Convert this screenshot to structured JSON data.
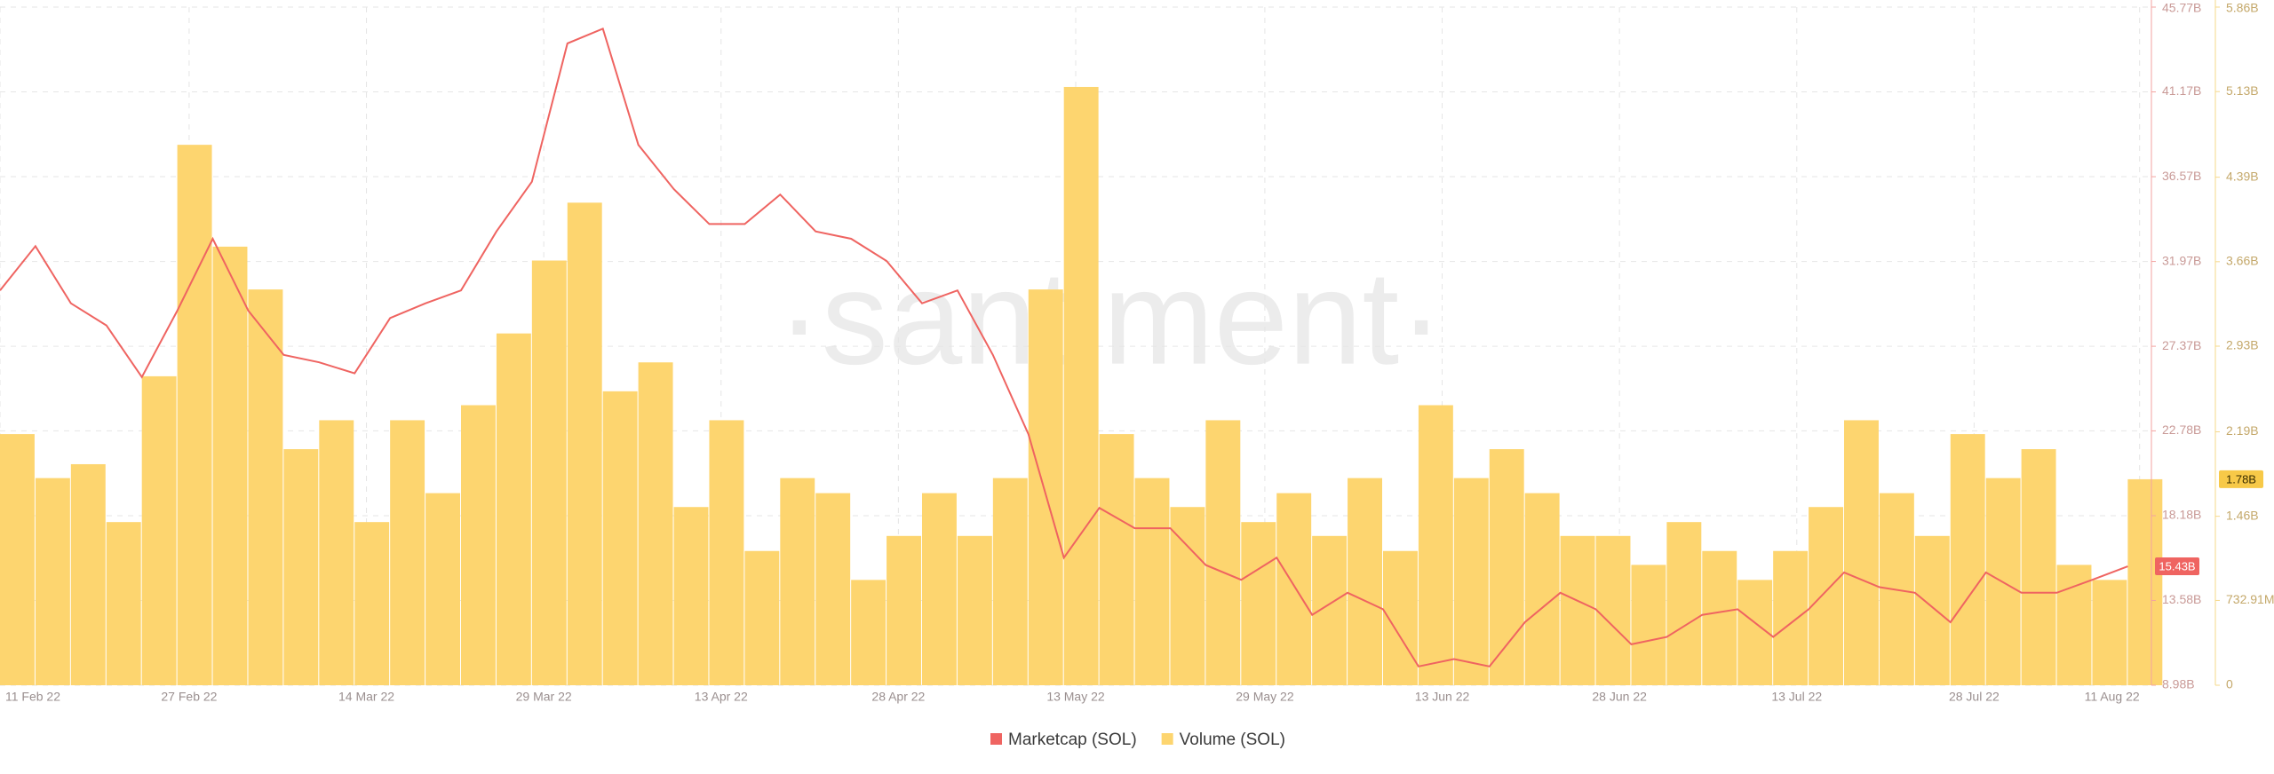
{
  "chart_data": {
    "type": "combo",
    "watermark": "·santiment·",
    "x": [
      "2022-02-11",
      "2022-02-14",
      "2022-02-17",
      "2022-02-20",
      "2022-02-23",
      "2022-02-26",
      "2022-03-01",
      "2022-03-04",
      "2022-03-07",
      "2022-03-10",
      "2022-03-13",
      "2022-03-16",
      "2022-03-19",
      "2022-03-22",
      "2022-03-25",
      "2022-03-28",
      "2022-03-31",
      "2022-04-03",
      "2022-04-06",
      "2022-04-09",
      "2022-04-12",
      "2022-04-15",
      "2022-04-18",
      "2022-04-21",
      "2022-04-24",
      "2022-04-27",
      "2022-04-30",
      "2022-05-03",
      "2022-05-06",
      "2022-05-09",
      "2022-05-12",
      "2022-05-15",
      "2022-05-18",
      "2022-05-21",
      "2022-05-24",
      "2022-05-27",
      "2022-05-30",
      "2022-06-02",
      "2022-06-05",
      "2022-06-08",
      "2022-06-11",
      "2022-06-14",
      "2022-06-17",
      "2022-06-20",
      "2022-06-23",
      "2022-06-26",
      "2022-06-29",
      "2022-07-02",
      "2022-07-05",
      "2022-07-08",
      "2022-07-11",
      "2022-07-14",
      "2022-07-17",
      "2022-07-20",
      "2022-07-23",
      "2022-07-26",
      "2022-07-29",
      "2022-08-01",
      "2022-08-04",
      "2022-08-07",
      "2022-08-10"
    ],
    "xlim": [
      "2022-02-11",
      "2022-08-12"
    ],
    "xticks": [
      {
        "value": "2022-02-11",
        "label": "11 Feb 22"
      },
      {
        "value": "2022-02-27",
        "label": "27 Feb 22"
      },
      {
        "value": "2022-03-14",
        "label": "14 Mar 22"
      },
      {
        "value": "2022-03-29",
        "label": "29 Mar 22"
      },
      {
        "value": "2022-04-13",
        "label": "13 Apr 22"
      },
      {
        "value": "2022-04-28",
        "label": "28 Apr 22"
      },
      {
        "value": "2022-05-13",
        "label": "13 May 22"
      },
      {
        "value": "2022-05-29",
        "label": "29 May 22"
      },
      {
        "value": "2022-06-13",
        "label": "13 Jun 22"
      },
      {
        "value": "2022-06-28",
        "label": "28 Jun 22"
      },
      {
        "value": "2022-07-13",
        "label": "13 Jul 22"
      },
      {
        "value": "2022-07-28",
        "label": "28 Jul 22"
      },
      {
        "value": "2022-08-11",
        "label": "11 Aug 22"
      }
    ],
    "ylim": [
      8.98,
      45.77
    ],
    "yticks": [
      {
        "value": 8.98,
        "label": "8.98B"
      },
      {
        "value": 13.58,
        "label": "13.58B"
      },
      {
        "value": 18.18,
        "label": "18.18B"
      },
      {
        "value": 22.78,
        "label": "22.78B"
      },
      {
        "value": 27.37,
        "label": "27.37B"
      },
      {
        "value": 31.97,
        "label": "31.97B"
      },
      {
        "value": 36.57,
        "label": "36.57B"
      },
      {
        "value": 41.17,
        "label": "41.17B"
      },
      {
        "value": 45.77,
        "label": "45.77B"
      }
    ],
    "y2lim": [
      0,
      5.86
    ],
    "y2ticks": [
      0,
      {
        "value": 0.73291,
        "label": "732.91M"
      },
      {
        "value": 1.46,
        "label": "1.46B"
      },
      {
        "value": 2.19,
        "label": "2.19B"
      },
      {
        "value": 2.93,
        "label": "2.93B"
      },
      {
        "value": 3.66,
        "label": "3.66B"
      },
      {
        "value": 4.39,
        "label": "4.39B"
      },
      {
        "value": 5.13,
        "label": "5.13B"
      },
      {
        "value": 5.86,
        "label": "5.86B"
      }
    ],
    "grid": true,
    "legend": "bottom",
    "series": [
      {
        "name": "Marketcap (SOL)",
        "type": "line",
        "color": "#ef6461",
        "last_label": "15.43B",
        "values": [
          30.4,
          32.8,
          29.7,
          28.5,
          25.7,
          29.3,
          33.2,
          29.3,
          26.9,
          26.5,
          25.9,
          28.9,
          29.7,
          30.4,
          33.6,
          36.3,
          43.8,
          44.6,
          38.3,
          35.9,
          34.0,
          34.0,
          35.6,
          33.6,
          33.2,
          32.0,
          29.7,
          30.4,
          26.9,
          22.6,
          15.9,
          18.6,
          17.5,
          17.5,
          15.5,
          14.7,
          15.9,
          12.8,
          14.0,
          13.1,
          10.0,
          10.4,
          10.0,
          12.4,
          14.0,
          13.1,
          11.2,
          11.6,
          12.8,
          13.1,
          11.6,
          13.1,
          15.1,
          14.3,
          14.0,
          12.4,
          15.1,
          14.0,
          14.0,
          14.7,
          15.43
        ]
      },
      {
        "name": "Volume (SOL)",
        "type": "bar",
        "axis": "y2",
        "color": "#fdd56f",
        "last_label": "1.78B",
        "values": [
          2.17,
          1.79,
          1.91,
          1.41,
          2.67,
          4.67,
          3.79,
          3.42,
          2.04,
          2.29,
          1.41,
          2.29,
          1.66,
          2.42,
          3.04,
          3.67,
          4.17,
          2.54,
          2.79,
          1.54,
          2.29,
          1.16,
          1.79,
          1.66,
          0.91,
          1.29,
          1.66,
          1.29,
          1.79,
          3.42,
          5.17,
          2.17,
          1.79,
          1.54,
          2.29,
          1.41,
          1.66,
          1.29,
          1.79,
          1.16,
          2.42,
          1.79,
          2.04,
          1.66,
          1.29,
          1.29,
          1.04,
          1.41,
          1.16,
          0.91,
          1.16,
          1.54,
          2.29,
          1.66,
          1.29,
          2.17,
          1.79,
          2.04,
          1.04,
          0.91,
          1.78
        ]
      }
    ]
  }
}
